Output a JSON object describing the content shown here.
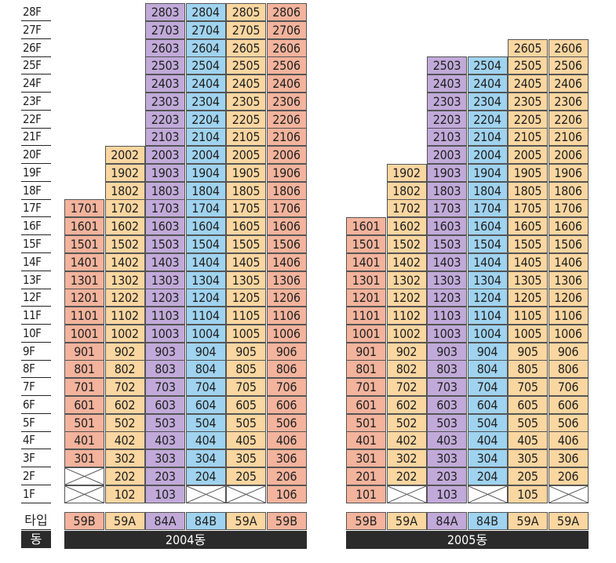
{
  "floors": [
    "28F",
    "27F",
    "26F",
    "25F",
    "24F",
    "23F",
    "22F",
    "21F",
    "20F",
    "19F",
    "18F",
    "17F",
    "16F",
    "15F",
    "14F",
    "13F",
    "12F",
    "11F",
    "10F",
    "9F",
    "8F",
    "7F",
    "6F",
    "5F",
    "4F",
    "3F",
    "2F",
    "1F"
  ],
  "legend": {
    "type_label": "타입",
    "dong_label": "동"
  },
  "type_colors": {
    "59B": "#f3b39c",
    "59A": "#fad6a0",
    "84A": "#c1aad9",
    "84B": "#9fd3ef"
  },
  "buildings": [
    {
      "name": "2004동",
      "columns": [
        {
          "type": "59B",
          "min_floor": 3,
          "max_floor": 17,
          "empty_floors": [
            1,
            2
          ],
          "unit_suffix": "01"
        },
        {
          "type": "59A",
          "min_floor": 1,
          "max_floor": 20,
          "empty_floors": [],
          "unit_suffix": "02"
        },
        {
          "type": "84A",
          "min_floor": 1,
          "max_floor": 28,
          "empty_floors": [],
          "unit_suffix": "03"
        },
        {
          "type": "84B",
          "min_floor": 2,
          "max_floor": 28,
          "empty_floors": [
            1
          ],
          "unit_suffix": "04"
        },
        {
          "type": "59A",
          "min_floor": 2,
          "max_floor": 28,
          "empty_floors": [
            1
          ],
          "unit_suffix": "05"
        },
        {
          "type": "59B",
          "min_floor": 1,
          "max_floor": 28,
          "empty_floors": [],
          "unit_suffix": "06"
        }
      ]
    },
    {
      "name": "2005동",
      "columns": [
        {
          "type": "59B",
          "min_floor": 1,
          "max_floor": 16,
          "empty_floors": [],
          "unit_suffix": "01"
        },
        {
          "type": "59A",
          "min_floor": 2,
          "max_floor": 19,
          "empty_floors": [
            1
          ],
          "unit_suffix": "02"
        },
        {
          "type": "84A",
          "min_floor": 1,
          "max_floor": 25,
          "empty_floors": [],
          "unit_suffix": "03"
        },
        {
          "type": "84B",
          "min_floor": 2,
          "max_floor": 25,
          "empty_floors": [
            1
          ],
          "unit_suffix": "04"
        },
        {
          "type": "59A",
          "min_floor": 1,
          "max_floor": 26,
          "empty_floors": [],
          "unit_suffix": "05"
        },
        {
          "type": "59A",
          "min_floor": 2,
          "max_floor": 26,
          "empty_floors": [
            1
          ],
          "unit_suffix": "06"
        }
      ]
    }
  ]
}
